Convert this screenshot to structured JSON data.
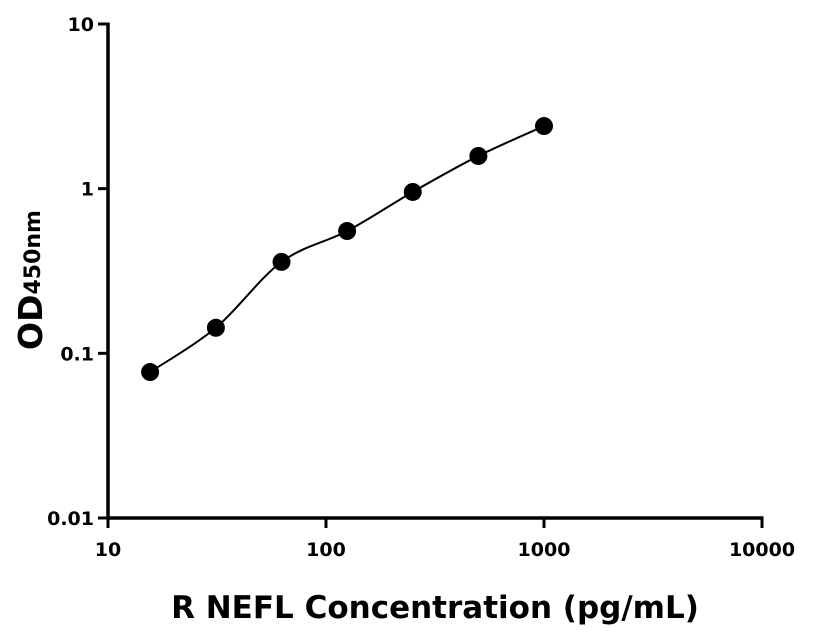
{
  "chart_data": {
    "type": "scatter",
    "xlabel": "R NEFL Concentration (pg/mL)",
    "ylabel": "OD",
    "ylabel_subscript": "450nm",
    "x": [
      15.6,
      31.25,
      62.5,
      125,
      250,
      500,
      1000
    ],
    "values": [
      0.077,
      0.143,
      0.359,
      0.553,
      0.955,
      1.58,
      2.4
    ],
    "color": "#000000",
    "xlog": true,
    "ylog": true,
    "xlim": [
      10,
      10000
    ],
    "xticks": [
      10,
      100,
      1000,
      10000
    ],
    "ylim": [
      0.01,
      10
    ],
    "yticks": [
      0.01,
      0.1,
      1,
      10
    ],
    "fit_line": true
  }
}
